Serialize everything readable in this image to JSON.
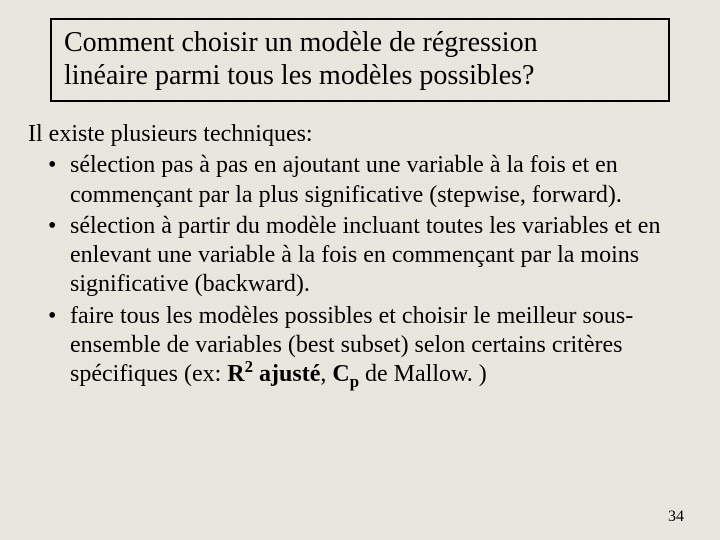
{
  "colors": {
    "background": "#e9e7de",
    "text": "#000000",
    "title_border": "#000000"
  },
  "typography": {
    "family": "Times New Roman",
    "title_fontsize_pt": 28,
    "body_fontsize_pt": 24,
    "pagenum_fontsize_pt": 16
  },
  "title": {
    "line1": "Comment choisir un modèle de régression",
    "line2": "linéaire parmi tous les modèles possibles?"
  },
  "intro": "Il existe plusieurs techniques:",
  "bullets": [
    "sélection pas à pas en ajoutant une variable à la fois et en commençant par la plus significative (stepwise, forward).",
    "sélection à partir du modèle incluant toutes les variables et en enlevant une variable à la fois en commençant par la moins significative  (backward).",
    "faire tous les modèles possibles et choisir le meilleur sous-ensemble de variables (best subset) selon certains critères spécifiques (ex: "
  ],
  "bullet3_suffix": {
    "r2_bold": "R",
    "r2_sup": "2",
    "r2_after": " ajusté",
    "sep": ", ",
    "cp_bold": "C",
    "cp_sub": "p",
    "cp_after": " de Mallow. )"
  },
  "page_number": "34"
}
